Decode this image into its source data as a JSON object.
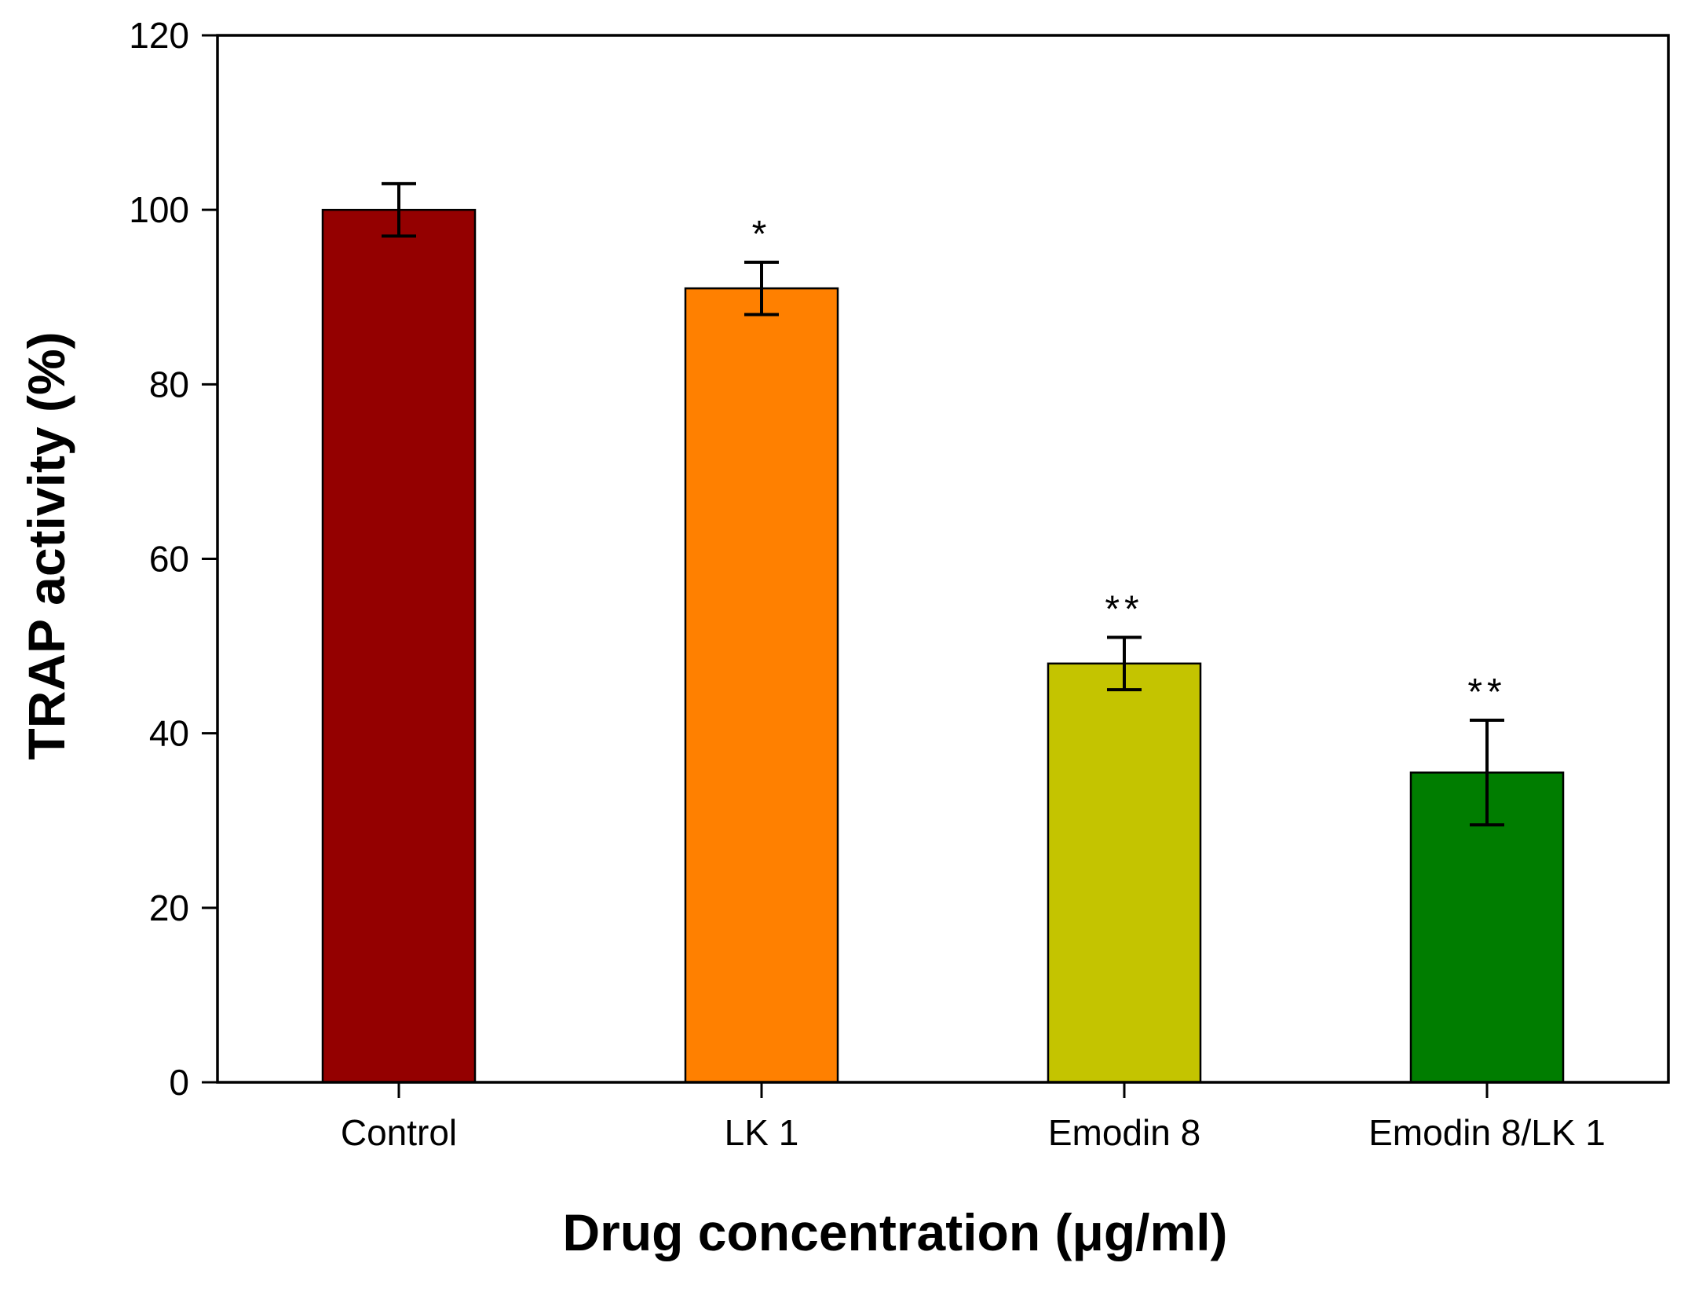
{
  "chart_data": {
    "type": "bar",
    "title": "",
    "xlabel": "Drug concentration (μg/ml)",
    "ylabel": "TRAP activity (%)",
    "ylim": [
      0,
      120
    ],
    "yticks": [
      0,
      20,
      40,
      60,
      80,
      100,
      120
    ],
    "grid": false,
    "categories": [
      "Control",
      "LK 1",
      "Emodin 8",
      "Emodin 8/LK 1"
    ],
    "values": [
      100,
      91,
      48,
      35.5
    ],
    "errors": [
      3,
      3,
      3,
      6
    ],
    "significance": [
      "",
      "*",
      "**",
      "**"
    ],
    "colors": [
      "#940000",
      "#FF8000",
      "#C4C400",
      "#007D00"
    ]
  }
}
